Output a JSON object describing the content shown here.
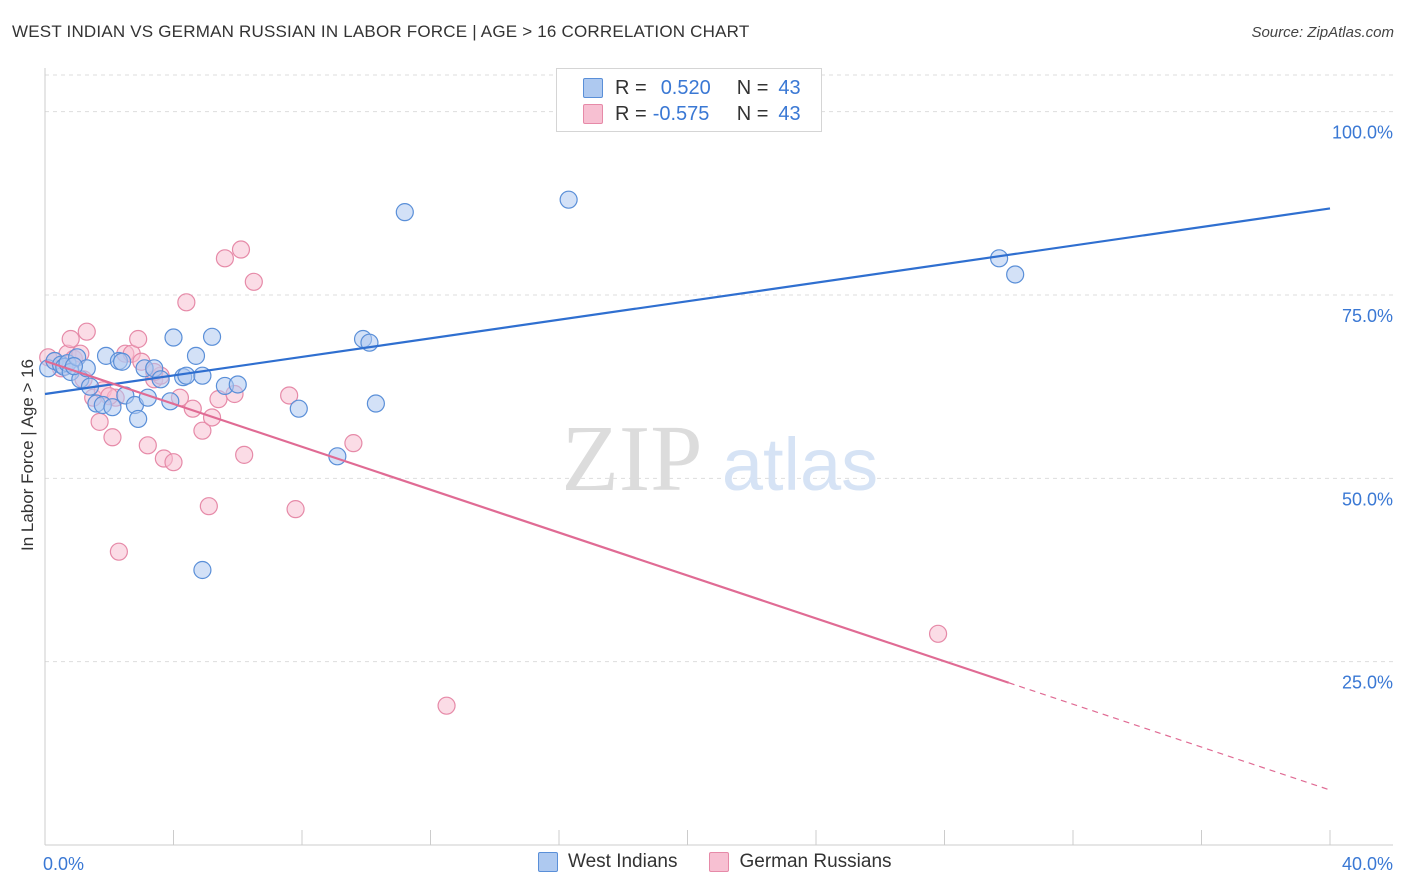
{
  "header": {
    "title": "WEST INDIAN VS GERMAN RUSSIAN IN LABOR FORCE | AGE > 16 CORRELATION CHART",
    "source": "Source: ZipAtlas.com"
  },
  "legend_top": {
    "rows": [
      {
        "r_label": "R =",
        "r_value": "0.520",
        "n_label": "N =",
        "n_value": "43"
      },
      {
        "r_label": "R =",
        "r_value": "-0.575",
        "n_label": "N =",
        "n_value": "43"
      }
    ]
  },
  "watermark": {
    "zip": "ZIP",
    "atlas": "atlas"
  },
  "colors": {
    "blue_fill": "#aec9f0",
    "blue_stroke": "#5a8fd8",
    "blue_line": "#2f6fd0",
    "pink_fill": "#f7c0d2",
    "pink_stroke": "#e68aa8",
    "pink_line": "#e06b94",
    "tick_text": "#3a78d4",
    "grid": "#dddddd"
  },
  "chart_data": {
    "type": "scatter",
    "title": "WEST INDIAN VS GERMAN RUSSIAN IN LABOR FORCE | AGE > 16 CORRELATION CHART",
    "xlabel": "",
    "ylabel": "In Labor Force | Age > 16",
    "xlim": [
      0,
      40
    ],
    "ylim": [
      0,
      105
    ],
    "x_tick_labels": [
      {
        "value": 0,
        "label": "0.0%"
      },
      {
        "value": 40,
        "label": "40.0%"
      }
    ],
    "y_tick_labels": [
      {
        "value": 25,
        "label": "25.0%"
      },
      {
        "value": 50,
        "label": "50.0%"
      },
      {
        "value": 75,
        "label": "75.0%"
      },
      {
        "value": 100,
        "label": "100.0%"
      }
    ],
    "series": [
      {
        "name": "West Indians",
        "color": "blue",
        "r": 0.52,
        "n": 43,
        "trend": {
          "x0": 0,
          "y0": 61.5,
          "x1": 40,
          "y1": 86.8,
          "solid_until": 40
        },
        "points": [
          [
            0.1,
            65.0
          ],
          [
            0.3,
            66.0
          ],
          [
            0.5,
            65.5
          ],
          [
            0.6,
            65.2
          ],
          [
            0.7,
            65.7
          ],
          [
            0.8,
            64.5
          ],
          [
            1.0,
            66.5
          ],
          [
            1.1,
            63.5
          ],
          [
            1.3,
            65.0
          ],
          [
            1.4,
            62.5
          ],
          [
            1.6,
            60.2
          ],
          [
            1.8,
            60.0
          ],
          [
            1.9,
            66.7
          ],
          [
            2.1,
            59.7
          ],
          [
            2.3,
            66.0
          ],
          [
            2.5,
            61.3
          ],
          [
            2.8,
            60.0
          ],
          [
            2.9,
            58.1
          ],
          [
            3.1,
            65.0
          ],
          [
            3.2,
            61.0
          ],
          [
            3.4,
            65.0
          ],
          [
            3.6,
            63.5
          ],
          [
            3.9,
            60.5
          ],
          [
            4.0,
            69.2
          ],
          [
            4.3,
            63.8
          ],
          [
            4.4,
            64.0
          ],
          [
            4.7,
            66.7
          ],
          [
            4.9,
            64.0
          ],
          [
            4.9,
            37.5
          ],
          [
            5.2,
            69.3
          ],
          [
            5.6,
            62.6
          ],
          [
            6.0,
            62.8
          ],
          [
            7.9,
            59.5
          ],
          [
            9.1,
            53.0
          ],
          [
            9.9,
            69.0
          ],
          [
            10.1,
            68.5
          ],
          [
            10.3,
            60.2
          ],
          [
            11.2,
            86.3
          ],
          [
            16.3,
            88.0
          ],
          [
            29.7,
            80.0
          ],
          [
            30.2,
            77.8
          ],
          [
            0.9,
            65.3
          ],
          [
            2.4,
            65.9
          ]
        ]
      },
      {
        "name": "German Russians",
        "color": "pink",
        "r": -0.575,
        "n": 43,
        "trend": {
          "x0": 0,
          "y0": 66.0,
          "x1": 40,
          "y1": 7.5,
          "solid_until": 30.0
        },
        "points": [
          [
            0.1,
            66.5
          ],
          [
            0.3,
            66.0
          ],
          [
            0.5,
            65.0
          ],
          [
            0.7,
            67.0
          ],
          [
            0.8,
            69.0
          ],
          [
            0.9,
            66.3
          ],
          [
            1.1,
            67.0
          ],
          [
            1.3,
            70.0
          ],
          [
            1.5,
            61.0
          ],
          [
            1.7,
            57.7
          ],
          [
            1.8,
            62.0
          ],
          [
            2.1,
            55.6
          ],
          [
            2.2,
            61.0
          ],
          [
            2.3,
            40.0
          ],
          [
            2.5,
            67.0
          ],
          [
            2.7,
            67.0
          ],
          [
            2.9,
            69.0
          ],
          [
            3.0,
            65.9
          ],
          [
            3.2,
            54.5
          ],
          [
            3.4,
            63.5
          ],
          [
            3.6,
            64.0
          ],
          [
            3.7,
            52.7
          ],
          [
            4.0,
            52.2
          ],
          [
            4.2,
            61.0
          ],
          [
            4.4,
            74.0
          ],
          [
            4.6,
            59.5
          ],
          [
            4.9,
            56.5
          ],
          [
            5.1,
            46.2
          ],
          [
            5.2,
            58.3
          ],
          [
            5.4,
            60.8
          ],
          [
            5.6,
            80.0
          ],
          [
            5.9,
            61.5
          ],
          [
            6.1,
            81.2
          ],
          [
            6.2,
            53.2
          ],
          [
            6.5,
            76.8
          ],
          [
            7.6,
            61.3
          ],
          [
            7.8,
            45.8
          ],
          [
            9.6,
            54.8
          ],
          [
            12.5,
            19.0
          ],
          [
            27.8,
            28.8
          ],
          [
            1.2,
            63.5
          ],
          [
            2.0,
            61.2
          ],
          [
            3.4,
            64.5
          ]
        ]
      }
    ]
  },
  "bottom_legend": {
    "items": [
      {
        "label": "West Indians"
      },
      {
        "label": "German Russians"
      }
    ]
  }
}
